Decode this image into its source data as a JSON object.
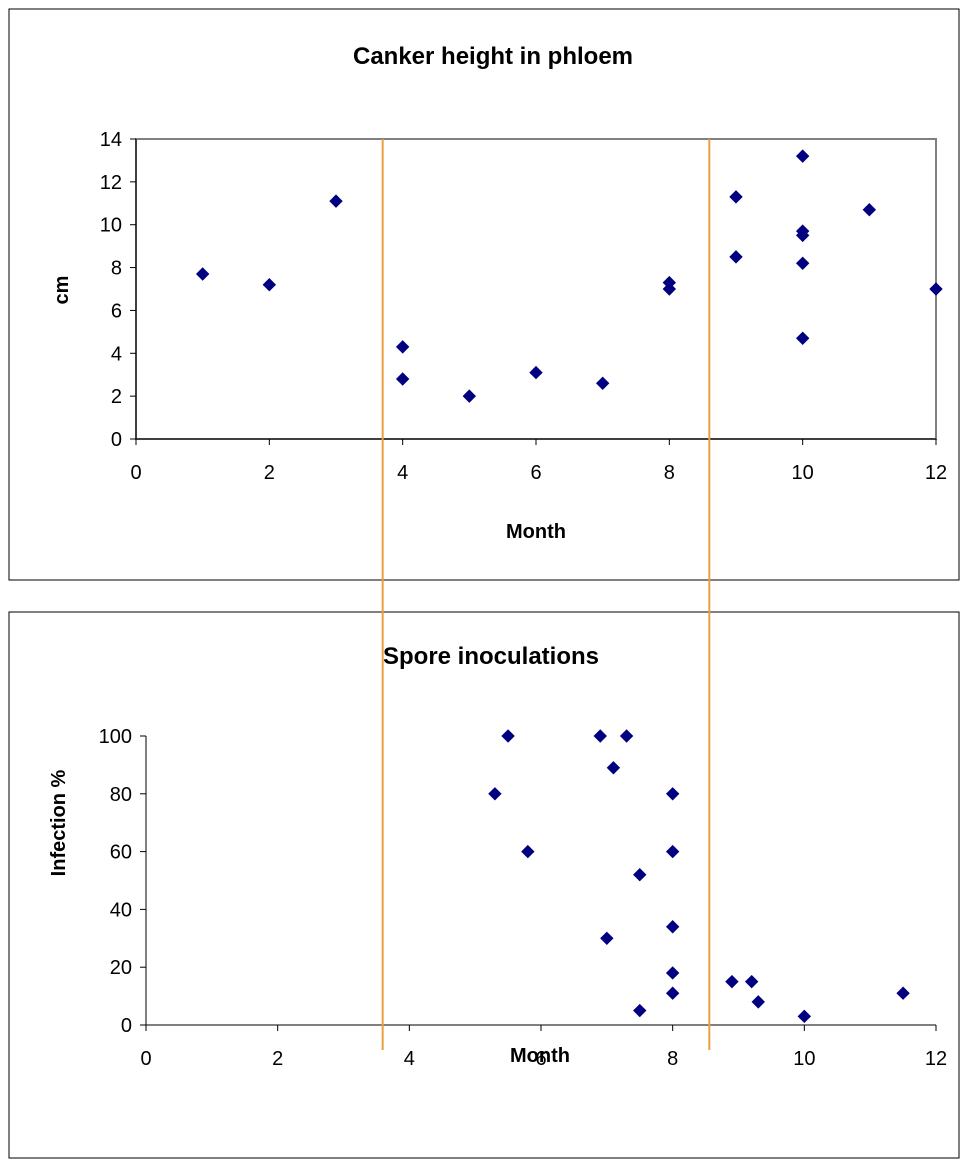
{
  "chart_data": [
    {
      "type": "scatter",
      "title": "Canker height in phloem",
      "xlabel": "Month",
      "ylabel": "cm",
      "xlim": [
        0,
        12
      ],
      "ylim": [
        0,
        14
      ],
      "xticks": [
        0,
        2,
        4,
        6,
        8,
        10,
        12
      ],
      "yticks": [
        0,
        2,
        4,
        6,
        8,
        10,
        12,
        14
      ],
      "grid": false,
      "plot_border": true,
      "marker": "diamond",
      "marker_color": "#000080",
      "points": [
        {
          "x": 1,
          "y": 7.7
        },
        {
          "x": 2,
          "y": 7.2
        },
        {
          "x": 3,
          "y": 11.1
        },
        {
          "x": 4,
          "y": 4.3
        },
        {
          "x": 4,
          "y": 2.8
        },
        {
          "x": 5,
          "y": 2.0
        },
        {
          "x": 6,
          "y": 3.1
        },
        {
          "x": 7,
          "y": 2.6
        },
        {
          "x": 8,
          "y": 7.3
        },
        {
          "x": 8,
          "y": 7.0
        },
        {
          "x": 9,
          "y": 11.3
        },
        {
          "x": 9,
          "y": 8.5
        },
        {
          "x": 10,
          "y": 13.2
        },
        {
          "x": 10,
          "y": 9.7
        },
        {
          "x": 10,
          "y": 9.5
        },
        {
          "x": 10,
          "y": 8.2
        },
        {
          "x": 10,
          "y": 4.7
        },
        {
          "x": 11,
          "y": 10.7
        },
        {
          "x": 12,
          "y": 7.0
        }
      ]
    },
    {
      "type": "scatter",
      "title": "Spore inoculations",
      "xlabel": "Month",
      "ylabel": "Infection %",
      "xlim": [
        0,
        12
      ],
      "ylim": [
        0,
        100
      ],
      "xticks": [
        0,
        2,
        4,
        6,
        8,
        10,
        12
      ],
      "yticks": [
        0,
        20,
        40,
        60,
        80,
        100
      ],
      "grid": false,
      "plot_border": false,
      "marker": "diamond",
      "marker_color": "#000080",
      "points": [
        {
          "x": 5.3,
          "y": 80
        },
        {
          "x": 5.5,
          "y": 100
        },
        {
          "x": 5.8,
          "y": 60
        },
        {
          "x": 6.9,
          "y": 100
        },
        {
          "x": 7.0,
          "y": 30
        },
        {
          "x": 7.1,
          "y": 89
        },
        {
          "x": 7.3,
          "y": 100
        },
        {
          "x": 7.5,
          "y": 52
        },
        {
          "x": 7.5,
          "y": 5
        },
        {
          "x": 8.0,
          "y": 80
        },
        {
          "x": 8.0,
          "y": 60
        },
        {
          "x": 8.0,
          "y": 34
        },
        {
          "x": 8.0,
          "y": 18
        },
        {
          "x": 8.0,
          "y": 11
        },
        {
          "x": 8.9,
          "y": 15
        },
        {
          "x": 9.2,
          "y": 15
        },
        {
          "x": 9.3,
          "y": 8
        },
        {
          "x": 10.0,
          "y": 3
        },
        {
          "x": 11.5,
          "y": 11
        }
      ]
    }
  ],
  "reference_lines": {
    "type": "vertical",
    "color": "#E8A040",
    "months": [
      3.7,
      8.6
    ]
  }
}
